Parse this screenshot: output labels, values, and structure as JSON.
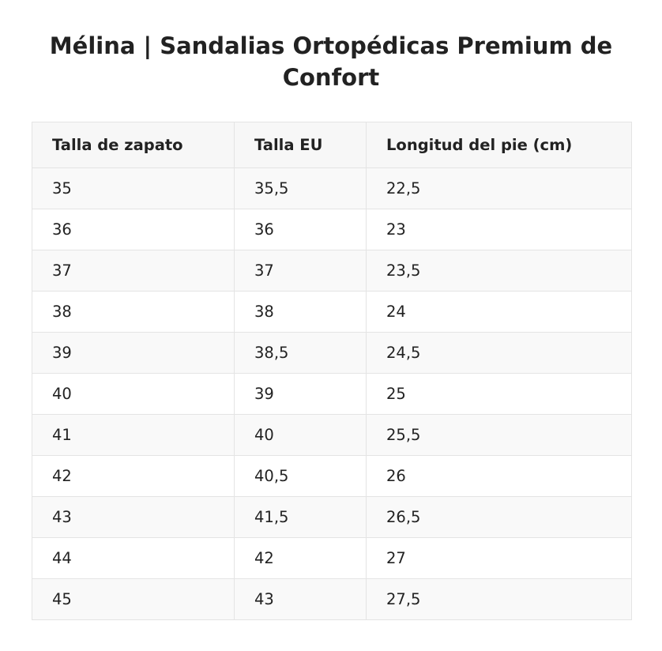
{
  "title": "Mélina | Sandalias Ortopédicas Premium de Confort",
  "table": {
    "headers": [
      "Talla de zapato",
      "Talla EU",
      "Longitud del pie (cm)"
    ],
    "rows": [
      [
        "35",
        "35,5",
        "22,5"
      ],
      [
        "36",
        "36",
        "23"
      ],
      [
        "37",
        "37",
        "23,5"
      ],
      [
        "38",
        "38",
        "24"
      ],
      [
        "39",
        "38,5",
        "24,5"
      ],
      [
        "40",
        "39",
        "25"
      ],
      [
        "41",
        "40",
        "25,5"
      ],
      [
        "42",
        "40,5",
        "26"
      ],
      [
        "43",
        "41,5",
        "26,5"
      ],
      [
        "44",
        "42",
        "27"
      ],
      [
        "45",
        "43",
        "27,5"
      ]
    ]
  },
  "colors": {
    "text": "#222222",
    "header_bg": "#f7f7f7",
    "row_alt_bg": "#f9f9f9",
    "border": "#e4e4e4"
  }
}
